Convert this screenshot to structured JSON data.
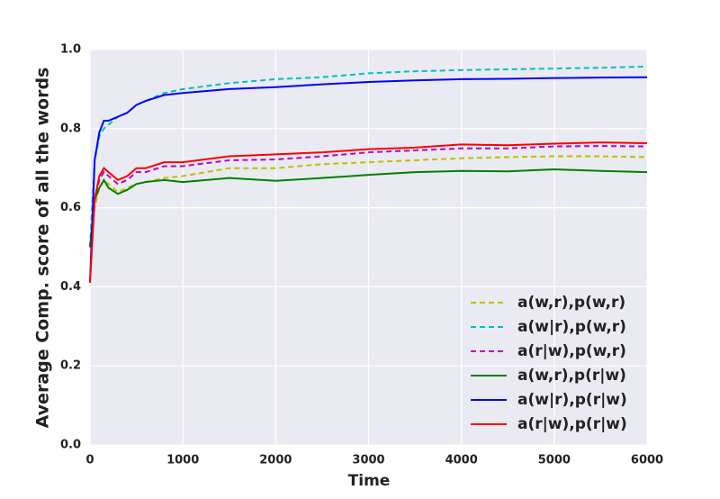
{
  "chart_data": {
    "type": "line",
    "xlabel": "Time",
    "ylabel": "Average Comp. score of all the words",
    "x": [
      0,
      50,
      100,
      150,
      200,
      300,
      400,
      500,
      600,
      800,
      1000,
      1500,
      2000,
      2500,
      3000,
      3500,
      4000,
      4500,
      5000,
      5500,
      6000
    ],
    "series": [
      {
        "name": "a(w,r),p(w,r)",
        "color": "#bfbf00",
        "linestyle": "dashed",
        "values": [
          0.5,
          0.6,
          0.65,
          0.67,
          0.66,
          0.64,
          0.65,
          0.66,
          0.665,
          0.675,
          0.68,
          0.7,
          0.7,
          0.71,
          0.715,
          0.72,
          0.725,
          0.728,
          0.73,
          0.73,
          0.728
        ]
      },
      {
        "name": "a(w|r),p(w,r)",
        "color": "#00bfbf",
        "linestyle": "dashed",
        "values": [
          0.5,
          0.72,
          0.78,
          0.8,
          0.81,
          0.83,
          0.84,
          0.86,
          0.87,
          0.89,
          0.9,
          0.915,
          0.925,
          0.93,
          0.94,
          0.945,
          0.948,
          0.95,
          0.952,
          0.954,
          0.957
        ]
      },
      {
        "name": "a(r|w),p(w,r)",
        "color": "#bf00bf",
        "linestyle": "dashed",
        "values": [
          0.5,
          0.62,
          0.67,
          0.69,
          0.68,
          0.66,
          0.67,
          0.69,
          0.69,
          0.705,
          0.705,
          0.72,
          0.722,
          0.73,
          0.74,
          0.745,
          0.75,
          0.75,
          0.755,
          0.756,
          0.755
        ]
      },
      {
        "name": "a(w,r),p(r|w)",
        "color": "#008000",
        "linestyle": "solid",
        "values": [
          0.5,
          0.62,
          0.65,
          0.67,
          0.65,
          0.635,
          0.645,
          0.66,
          0.665,
          0.67,
          0.665,
          0.675,
          0.668,
          0.675,
          0.683,
          0.69,
          0.693,
          0.692,
          0.697,
          0.693,
          0.69
        ]
      },
      {
        "name": "a(w|r),p(r|w)",
        "color": "#0000ff",
        "linestyle": "solid",
        "values": [
          0.41,
          0.72,
          0.79,
          0.82,
          0.82,
          0.83,
          0.84,
          0.86,
          0.87,
          0.885,
          0.89,
          0.9,
          0.905,
          0.912,
          0.918,
          0.922,
          0.925,
          0.926,
          0.928,
          0.929,
          0.93
        ]
      },
      {
        "name": "a(r|w),p(r|w)",
        "color": "#ff0000",
        "linestyle": "solid",
        "values": [
          0.41,
          0.62,
          0.68,
          0.7,
          0.69,
          0.67,
          0.68,
          0.7,
          0.7,
          0.715,
          0.715,
          0.73,
          0.735,
          0.74,
          0.748,
          0.752,
          0.76,
          0.758,
          0.762,
          0.765,
          0.763
        ]
      }
    ],
    "xlim": [
      0,
      6000
    ],
    "xticks": [
      0,
      1000,
      2000,
      3000,
      4000,
      5000,
      6000
    ],
    "ylim": [
      0,
      1
    ],
    "yticks": [
      {
        "value": 0,
        "label": "0.0"
      },
      0.2,
      0.4,
      0.6,
      0.8,
      {
        "value": 1,
        "label": "1.0"
      }
    ],
    "grid": true,
    "legend": "lower right"
  }
}
